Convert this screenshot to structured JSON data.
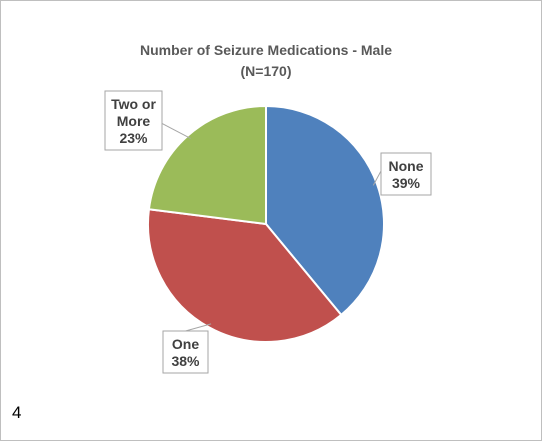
{
  "page_number": "4",
  "chart_data": {
    "type": "pie",
    "title": "Number of Seizure Medications - Male",
    "subtitle": "(N=170)",
    "slices": [
      {
        "label_lines": [
          "None"
        ],
        "percent_label": "39%",
        "value": 39,
        "color": "#4f81bd"
      },
      {
        "label_lines": [
          "One"
        ],
        "percent_label": "38%",
        "value": 38,
        "color": "#c0504d"
      },
      {
        "label_lines": [
          "Two or",
          "More"
        ],
        "percent_label": "23%",
        "value": 23,
        "color": "#9bbb59"
      }
    ],
    "start_angle_deg": 0,
    "direction": "clockwise",
    "legend": "none"
  }
}
